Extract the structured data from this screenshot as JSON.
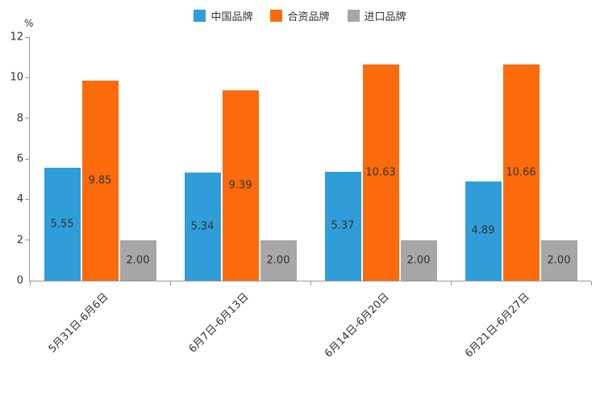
{
  "chart_data": {
    "type": "bar",
    "title": "",
    "unit_label": "%",
    "categories": [
      "5月31日-6月6日",
      "6月7日-6月13日",
      "6月14日-6月20日",
      "6月21日-6月27日"
    ],
    "series": [
      {
        "name": "中国品牌",
        "color": "#2F9DD8",
        "values": [
          5.55,
          5.34,
          5.37,
          4.89
        ]
      },
      {
        "name": "合资品牌",
        "color": "#FB6B0B",
        "values": [
          9.85,
          9.39,
          10.63,
          10.66
        ]
      },
      {
        "name": "进口品牌",
        "color": "#A7A7A7",
        "values": [
          2.0,
          2.0,
          2.0,
          2.0
        ]
      }
    ],
    "value_labels": [
      [
        "5.55",
        "5.34",
        "5.37",
        "4.89"
      ],
      [
        "9.85",
        "9.39",
        "10.63",
        "10.66"
      ],
      [
        "2.00",
        "2.00",
        "2.00",
        "2.00"
      ]
    ],
    "ylim": [
      0,
      12
    ],
    "yticks": [
      0,
      2,
      4,
      6,
      8,
      10,
      12
    ],
    "legend_position": "top-center",
    "grid": false,
    "axis_color": "#999999",
    "text_color": "#333333"
  }
}
